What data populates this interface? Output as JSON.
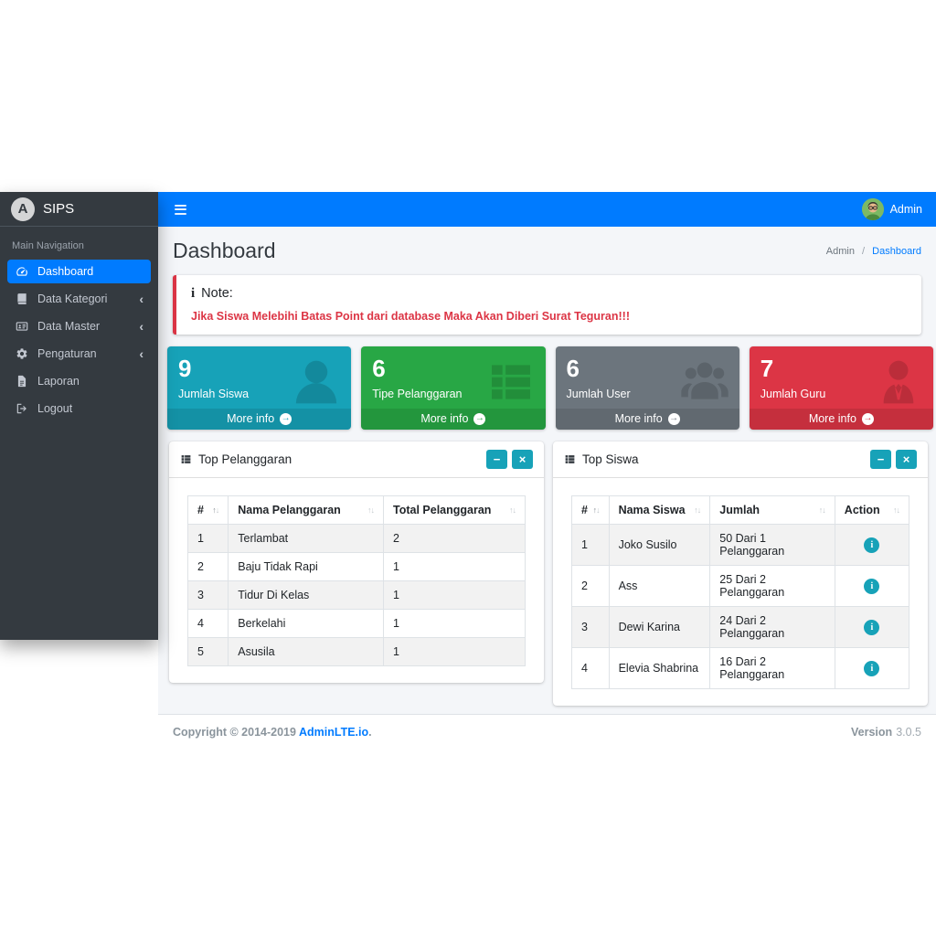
{
  "brand": {
    "logo_letter": "A",
    "title": "SIPS"
  },
  "navbar": {
    "user_name": "Admin",
    "hamburger_icon": "hamburger-icon",
    "avatar_icon": "user-avatar"
  },
  "sidebar": {
    "header": "Main Navigation",
    "items": [
      {
        "label": "Dashboard",
        "icon": "tachometer-icon",
        "active": true,
        "chevron": false
      },
      {
        "label": "Data Kategori",
        "icon": "book-icon",
        "active": false,
        "chevron": true
      },
      {
        "label": "Data Master",
        "icon": "id-card-icon",
        "active": false,
        "chevron": true
      },
      {
        "label": "Pengaturan",
        "icon": "gear-icon",
        "active": false,
        "chevron": true
      },
      {
        "label": "Laporan",
        "icon": "file-icon",
        "active": false,
        "chevron": false
      },
      {
        "label": "Logout",
        "icon": "logout-icon",
        "active": false,
        "chevron": false
      }
    ]
  },
  "content_header": {
    "title": "Dashboard",
    "breadcrumb_parent": "Admin",
    "breadcrumb_current": "Dashboard"
  },
  "note": {
    "icon": "info-icon",
    "title": "Note:",
    "message": "Jika Siswa Melebihi Batas Point dari database Maka Akan Diberi Surat Teguran!!!"
  },
  "info_boxes": [
    {
      "value": "9",
      "label": "Jumlah Siswa",
      "color": "#17a2b8",
      "icon": "user-icon",
      "more_label": "More info",
      "arrow_icon": "arrow-circle-right-icon"
    },
    {
      "value": "6",
      "label": "Tipe Pelanggaran",
      "color": "#28a745",
      "icon": "th-list-icon",
      "more_label": "More info",
      "arrow_icon": "arrow-circle-right-icon"
    },
    {
      "value": "6",
      "label": "Jumlah User",
      "color": "#6c757d",
      "icon": "users-icon",
      "more_label": "More info",
      "arrow_icon": "arrow-circle-right-icon"
    },
    {
      "value": "7",
      "label": "Jumlah Guru",
      "color": "#dc3545",
      "icon": "user-tie-icon",
      "more_label": "More info",
      "arrow_icon": "arrow-circle-right-icon"
    }
  ],
  "cards": [
    {
      "title": "Top Pelanggaran",
      "header_icon": "th-list-icon",
      "tools": [
        {
          "name": "minimize",
          "icon": "minus-icon"
        },
        {
          "name": "close",
          "icon": "close-icon"
        }
      ],
      "columns": [
        "#",
        "Nama Pelanggaran",
        "Total Pelanggaran"
      ],
      "rows": [
        [
          "1",
          "Terlambat",
          "2"
        ],
        [
          "2",
          "Baju Tidak Rapi",
          "1"
        ],
        [
          "3",
          "Tidur Di Kelas",
          "1"
        ],
        [
          "4",
          "Berkelahi",
          "1"
        ],
        [
          "5",
          "Asusila",
          "1"
        ]
      ],
      "action_column": false
    },
    {
      "title": "Top Siswa",
      "header_icon": "th-list-icon",
      "tools": [
        {
          "name": "minimize",
          "icon": "minus-icon"
        },
        {
          "name": "close",
          "icon": "close-icon"
        }
      ],
      "columns": [
        "#",
        "Nama Siswa",
        "Jumlah",
        "Action"
      ],
      "rows": [
        [
          "1",
          "Joko Susilo",
          "50 Dari 1 Pelanggaran"
        ],
        [
          "2",
          "Ass",
          "25 Dari 2 Pelanggaran"
        ],
        [
          "3",
          "Dewi Karina",
          "24 Dari 2 Pelanggaran"
        ],
        [
          "4",
          "Elevia Shabrina",
          "16 Dari 2 Pelanggaran"
        ]
      ],
      "action_column": true,
      "action_icon": "info-circle-icon"
    }
  ],
  "footer": {
    "copyright_text": "Copyright © 2014-2019",
    "link_text": "AdminLTE.io",
    "after_link": ".",
    "version_label": "Version",
    "version_value": "3.0.5"
  },
  "theme": {
    "navbar_bg": "#007bff",
    "sidebar_bg": "#343a40",
    "content_bg": "#f4f6f9",
    "active_item": "#007bff",
    "tool_button": "#17a2b8",
    "note_border": "#dc3545",
    "link": "#007bff"
  }
}
